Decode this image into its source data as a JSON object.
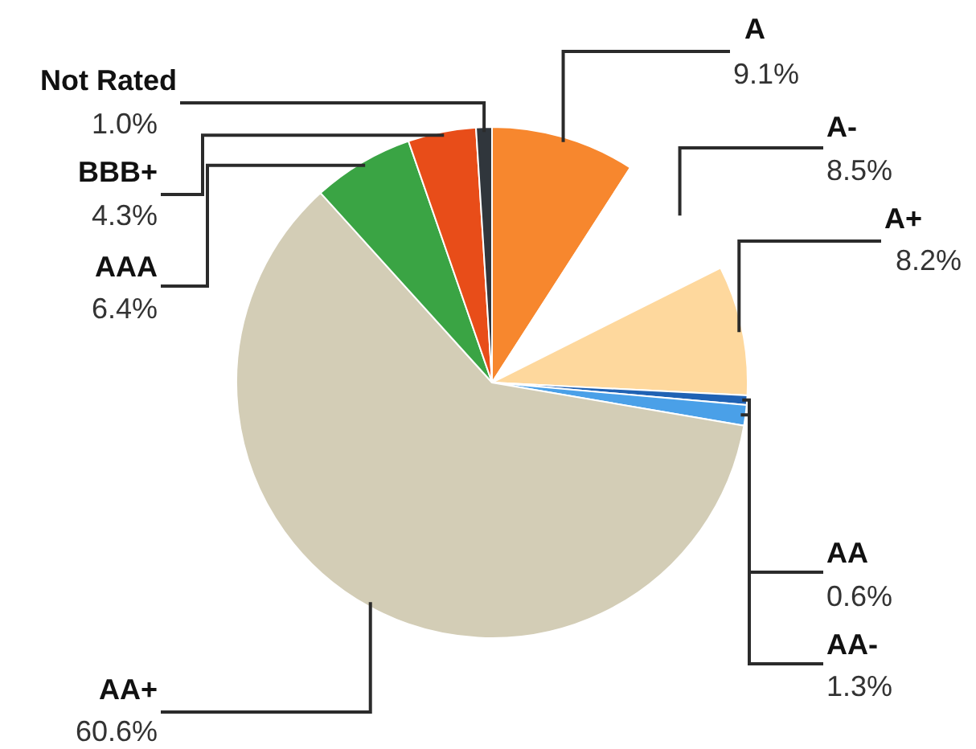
{
  "chart_data": {
    "type": "pie",
    "categories": [
      "A",
      "A-",
      "A+",
      "AA",
      "AA-",
      "AA+",
      "AAA",
      "BBB+",
      "Not Rated"
    ],
    "values": [
      9.1,
      8.5,
      8.2,
      0.6,
      1.3,
      60.6,
      6.4,
      4.3,
      1.0
    ],
    "colors": [
      "#f7872e",
      "#ffffff",
      "#fed89d",
      "#2062b4",
      "#4aa0e8",
      "#d3cdb6",
      "#3aa444",
      "#e84d19",
      "#30363c"
    ],
    "value_labels": [
      "9.1%",
      "8.5%",
      "8.2%",
      "0.6%",
      "1.3%",
      "60.6%",
      "6.4%",
      "4.3%",
      "1.0%"
    ]
  }
}
